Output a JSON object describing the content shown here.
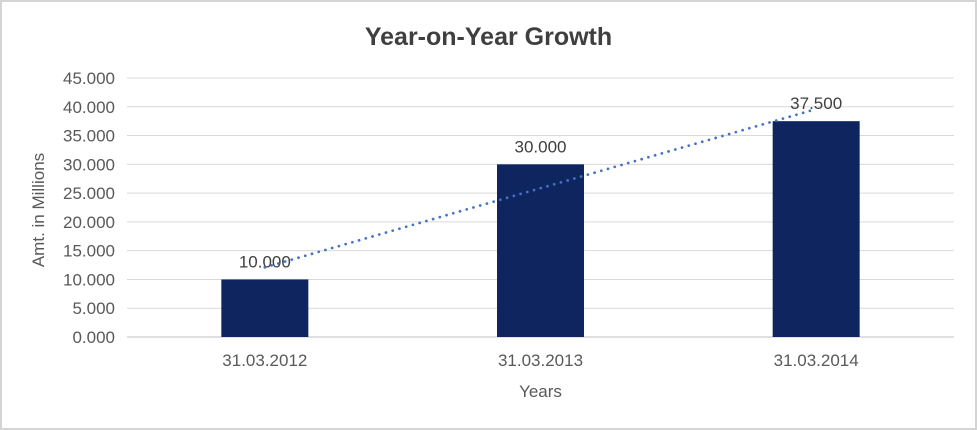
{
  "chart_data": {
    "type": "bar",
    "title": "Year-on-Year Growth",
    "xlabel": "Years",
    "ylabel": "Amt. in Millions",
    "categories": [
      "31.03.2012",
      "31.03.2013",
      "31.03.2014"
    ],
    "values": [
      10,
      30,
      37.5
    ],
    "data_labels": [
      "10.000",
      "30.000",
      "37.500"
    ],
    "y_ticks": [
      "0.000",
      "5.000",
      "10.000",
      "15.000",
      "20.000",
      "25.000",
      "30.000",
      "35.000",
      "40.000",
      "45.000"
    ],
    "y_tick_step": 5,
    "ylim": [
      0,
      45
    ],
    "grid": true,
    "legend": "none",
    "bar_color": "#0f2560",
    "trendline": {
      "type": "linear",
      "style": "round-dot",
      "color": "#4472c4",
      "start_value": 12.1,
      "end_value": 39.6
    },
    "colors": {
      "gridline": "#d9d9d9",
      "axis_line": "#c0c0c0",
      "tick_label": "#595959",
      "title": "#3f3f3f",
      "data_label": "#404040",
      "axis_title": "#595959",
      "frame_border": "#d4d4d4",
      "background": "#ffffff"
    }
  }
}
